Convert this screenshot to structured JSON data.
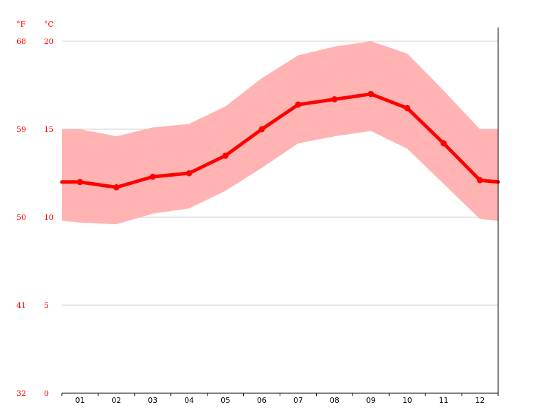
{
  "chart_data": {
    "type": "line",
    "categories": [
      "01",
      "02",
      "03",
      "04",
      "05",
      "06",
      "07",
      "08",
      "09",
      "10",
      "11",
      "12"
    ],
    "series": [
      {
        "values": [
          12.0,
          11.7,
          12.3,
          12.5,
          13.5,
          15.0,
          16.4,
          16.7,
          17.0,
          16.2,
          14.2,
          12.1
        ],
        "color": "#ff0000"
      }
    ],
    "band": {
      "max": [
        15.0,
        14.6,
        15.1,
        15.3,
        16.3,
        17.9,
        19.2,
        19.7,
        20.0,
        19.3,
        17.2,
        15.0
      ],
      "min": [
        9.7,
        9.6,
        10.2,
        10.5,
        11.5,
        12.8,
        14.2,
        14.6,
        14.9,
        13.9,
        11.9,
        9.9
      ],
      "color": "#ffb3b3"
    },
    "start_value": 12.0,
    "start_band": {
      "max": 15.0,
      "min": 9.8
    },
    "end_value": 12.0,
    "end_band": {
      "max": 15.0,
      "min": 9.8
    },
    "ylim": [
      0,
      20
    ],
    "grid": true,
    "axes": {
      "left_unit": "°F",
      "right_unit": "°C",
      "fahrenheit_ticks": [
        "32",
        "41",
        "50",
        "59",
        "68"
      ],
      "celsius_ticks": [
        "0",
        "5",
        "10",
        "15",
        "20"
      ],
      "celsius_values": [
        0,
        5,
        10,
        15,
        20
      ]
    },
    "colors": {
      "tick_labels": "#ff0000",
      "grid": "#cccccc",
      "axis": "#000000"
    }
  }
}
